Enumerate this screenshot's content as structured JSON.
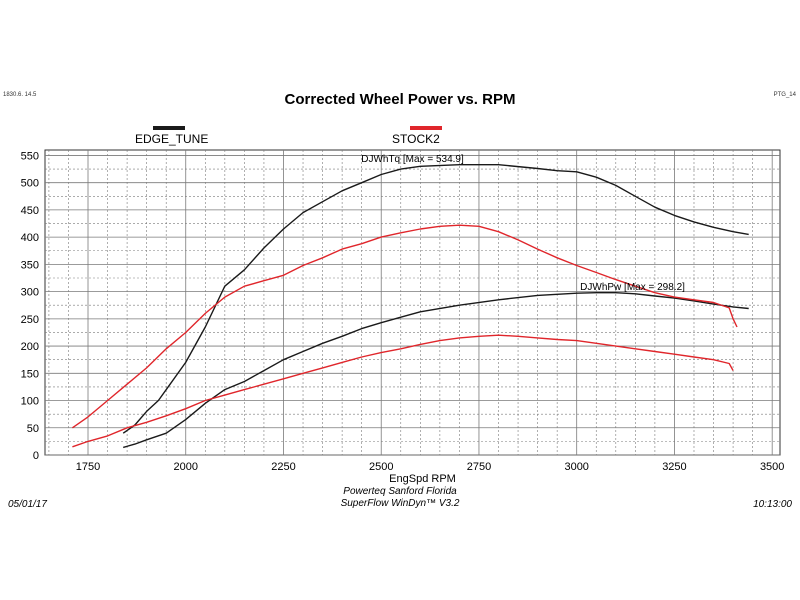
{
  "header": {
    "corner_left": "1830.6. 14.5",
    "corner_right": "PTG_14"
  },
  "footer": {
    "date": "05/01/17",
    "time": "10:13:00",
    "shop": "Powerteq Sanford Florida",
    "software": "SuperFlow WinDyn™  V3.2"
  },
  "colors": {
    "edge_tune": "#1a1a1a",
    "stock2": "#e0262b",
    "grid": "#7a7a7a",
    "background": "#ffffff"
  },
  "chart_data": {
    "type": "line",
    "title": "Corrected Wheel Power vs. RPM",
    "xlabel": "EngSpd RPM",
    "ylabel": "",
    "xlim": [
      1640,
      3520
    ],
    "ylim": [
      0,
      560
    ],
    "x_ticks": [
      1750,
      2000,
      2250,
      2500,
      2750,
      3000,
      3250,
      3500
    ],
    "y_ticks": [
      0,
      50,
      100,
      150,
      200,
      250,
      300,
      350,
      400,
      450,
      500,
      550
    ],
    "grid": true,
    "legend": [
      {
        "name": "EDGE_TUNE",
        "color": "#1a1a1a"
      },
      {
        "name": "STOCK2",
        "color": "#e0262b"
      }
    ],
    "annotations": [
      {
        "text": "DJWhTq [Max = 534.9]",
        "x": 2500,
        "y": 538
      },
      {
        "text": "DJWhPw [Max = 298.2]",
        "x": 3060,
        "y": 303
      }
    ],
    "series": [
      {
        "name": "EDGE_TUNE torque",
        "color": "#1a1a1a",
        "x": [
          1840,
          1870,
          1900,
          1930,
          1960,
          2000,
          2050,
          2100,
          2150,
          2200,
          2250,
          2300,
          2350,
          2400,
          2450,
          2500,
          2550,
          2600,
          2700,
          2800,
          2900,
          2950,
          3000,
          3050,
          3100,
          3150,
          3200,
          3250,
          3300,
          3350,
          3400,
          3440
        ],
        "y": [
          40,
          55,
          80,
          100,
          130,
          170,
          235,
          310,
          340,
          380,
          415,
          445,
          465,
          485,
          500,
          515,
          525,
          530,
          533,
          533,
          526,
          522,
          520,
          510,
          495,
          475,
          455,
          440,
          428,
          418,
          410,
          405
        ]
      },
      {
        "name": "EDGE_TUNE power",
        "color": "#1a1a1a",
        "x": [
          1840,
          1870,
          1900,
          1950,
          2000,
          2050,
          2100,
          2150,
          2200,
          2250,
          2300,
          2350,
          2400,
          2450,
          2500,
          2550,
          2600,
          2700,
          2800,
          2900,
          2950,
          3000,
          3050,
          3100,
          3150,
          3200,
          3250,
          3300,
          3350,
          3400,
          3440
        ],
        "y": [
          14,
          20,
          28,
          40,
          65,
          95,
          120,
          135,
          155,
          175,
          190,
          205,
          218,
          232,
          243,
          253,
          263,
          275,
          285,
          293,
          295,
          297,
          298,
          298,
          296,
          292,
          288,
          283,
          277,
          272,
          269
        ]
      },
      {
        "name": "STOCK2 torque",
        "color": "#e0262b",
        "x": [
          1710,
          1750,
          1800,
          1850,
          1900,
          1950,
          2000,
          2050,
          2100,
          2150,
          2200,
          2250,
          2300,
          2350,
          2400,
          2450,
          2500,
          2550,
          2600,
          2650,
          2700,
          2750,
          2800,
          2850,
          2900,
          2950,
          3000,
          3050,
          3100,
          3150,
          3200,
          3250,
          3300,
          3350,
          3390,
          3400,
          3410
        ],
        "y": [
          50,
          70,
          100,
          130,
          160,
          195,
          225,
          260,
          290,
          310,
          320,
          330,
          348,
          362,
          378,
          388,
          400,
          408,
          415,
          420,
          422,
          420,
          410,
          395,
          378,
          362,
          348,
          335,
          322,
          310,
          298,
          290,
          285,
          280,
          270,
          250,
          235
        ]
      },
      {
        "name": "STOCK2 power",
        "color": "#e0262b",
        "x": [
          1710,
          1750,
          1800,
          1850,
          1900,
          1950,
          2000,
          2050,
          2100,
          2150,
          2200,
          2250,
          2300,
          2350,
          2400,
          2450,
          2500,
          2550,
          2600,
          2650,
          2700,
          2750,
          2800,
          2850,
          2900,
          2950,
          3000,
          3050,
          3100,
          3150,
          3200,
          3250,
          3300,
          3350,
          3390,
          3400
        ],
        "y": [
          15,
          25,
          35,
          50,
          60,
          72,
          85,
          100,
          110,
          120,
          130,
          140,
          150,
          160,
          170,
          180,
          188,
          195,
          203,
          210,
          215,
          218,
          220,
          218,
          215,
          212,
          210,
          205,
          200,
          195,
          190,
          185,
          180,
          175,
          168,
          155
        ]
      }
    ]
  }
}
